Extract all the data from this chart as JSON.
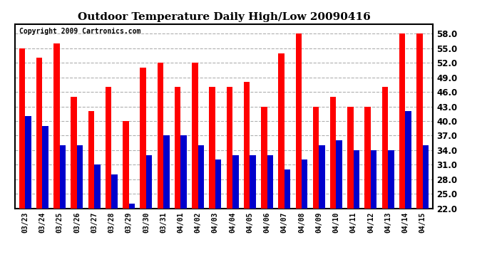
{
  "title": "Outdoor Temperature Daily High/Low 20090416",
  "copyright": "Copyright 2009 Cartronics.com",
  "dates": [
    "03/23",
    "03/24",
    "03/25",
    "03/26",
    "03/27",
    "03/28",
    "03/29",
    "03/30",
    "03/31",
    "04/01",
    "04/02",
    "04/03",
    "04/04",
    "04/05",
    "04/06",
    "04/07",
    "04/08",
    "04/09",
    "04/10",
    "04/11",
    "04/12",
    "04/13",
    "04/14",
    "04/15"
  ],
  "highs": [
    55,
    53,
    56,
    45,
    42,
    47,
    40,
    51,
    52,
    47,
    52,
    47,
    47,
    48,
    43,
    54,
    58,
    43,
    45,
    43,
    43,
    47,
    58,
    58
  ],
  "lows": [
    41,
    39,
    35,
    35,
    31,
    29,
    23,
    33,
    37,
    37,
    35,
    32,
    33,
    33,
    33,
    30,
    32,
    35,
    36,
    34,
    34,
    34,
    42,
    35
  ],
  "high_color": "#ff0000",
  "low_color": "#0000cc",
  "bg_color": "#ffffff",
  "grid_color": "#b0b0b0",
  "ymin": 22,
  "ymax": 60,
  "yticks": [
    22.0,
    25.0,
    28.0,
    31.0,
    34.0,
    37.0,
    40.0,
    43.0,
    46.0,
    49.0,
    52.0,
    55.0,
    58.0
  ],
  "title_fontsize": 11,
  "copyright_fontsize": 7,
  "bar_width": 0.35
}
